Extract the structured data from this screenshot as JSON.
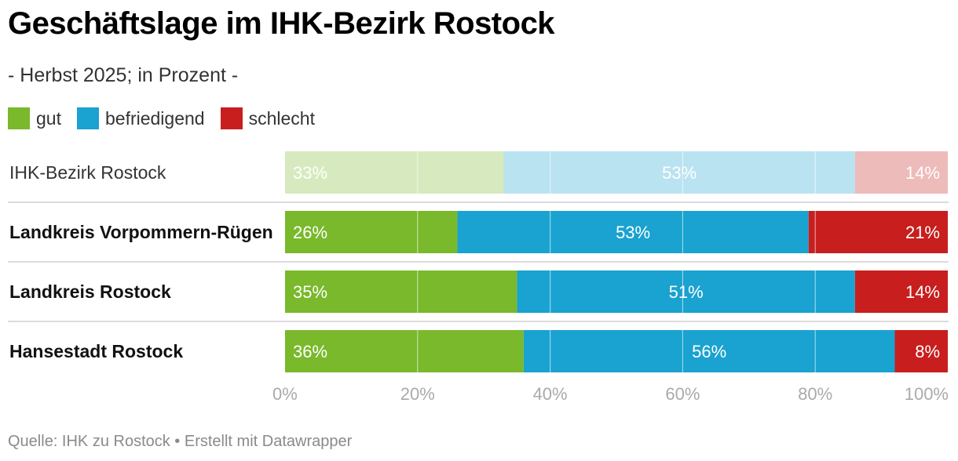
{
  "title": "Geschäftslage im IHK-Bezirk Rostock",
  "subtitle": "- Herbst 2025; in Prozent -",
  "footer": "Quelle: IHK zu Rostock • Erstellt mit Datawrapper",
  "colors": {
    "gut": "#79b92b",
    "befriedigend": "#1aa2d0",
    "schlecht": "#c81e1e",
    "grid": "#ffffff",
    "tick": "#aaaaaa"
  },
  "chart_data": {
    "type": "bar",
    "orientation": "horizontal",
    "stacked": true,
    "categories": [
      "IHK-Bezirk Rostock",
      "Landkreis Vorpommern-Rügen",
      "Landkreis Rostock",
      "Hansestadt Rostock"
    ],
    "series": [
      {
        "name": "gut",
        "values": [
          33,
          26,
          35,
          36
        ]
      },
      {
        "name": "befriedigend",
        "values": [
          53,
          53,
          51,
          56
        ]
      },
      {
        "name": "schlecht",
        "values": [
          14,
          21,
          14,
          8
        ]
      }
    ],
    "value_labels": [
      [
        "33%",
        "26%",
        "35%",
        "36%"
      ],
      [
        "53%",
        "53%",
        "51%",
        "56%"
      ],
      [
        "14%",
        "21%",
        "14%",
        "8%"
      ]
    ],
    "highlighted_rows": [
      false,
      true,
      true,
      true
    ],
    "xlim": [
      0,
      100
    ],
    "xticks": [
      0,
      20,
      40,
      60,
      80,
      100
    ],
    "xtick_labels": [
      "0%",
      "20%",
      "40%",
      "60%",
      "80%",
      "100%"
    ],
    "grid": true,
    "legend": "top-left"
  }
}
